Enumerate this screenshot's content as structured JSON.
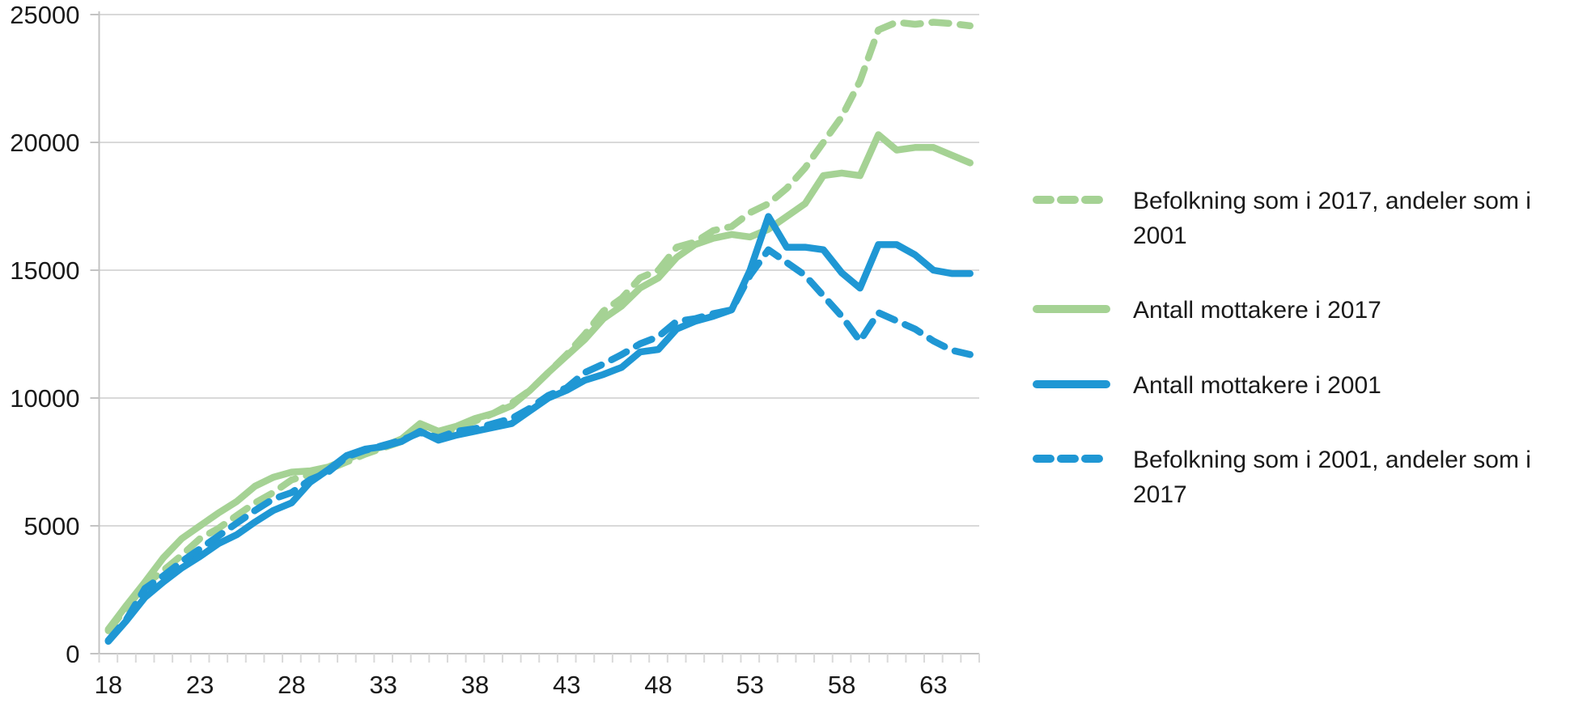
{
  "chart_data": {
    "type": "line",
    "title": "",
    "xlabel": "",
    "ylabel": "",
    "x": [
      18,
      19,
      20,
      21,
      22,
      23,
      24,
      25,
      26,
      27,
      28,
      29,
      30,
      31,
      32,
      33,
      34,
      35,
      36,
      37,
      38,
      39,
      40,
      41,
      42,
      43,
      44,
      45,
      46,
      47,
      48,
      49,
      50,
      51,
      52,
      53,
      54,
      55,
      56,
      57,
      58,
      59,
      60,
      61,
      62,
      63,
      64,
      65
    ],
    "x_tick_labels": [
      "18",
      "23",
      "28",
      "33",
      "38",
      "43",
      "48",
      "53",
      "58",
      "63"
    ],
    "x_tick_label_ages": [
      18,
      23,
      28,
      33,
      38,
      43,
      48,
      53,
      58,
      63
    ],
    "y_ticks": [
      0,
      5000,
      10000,
      15000,
      20000,
      25000
    ],
    "y_tick_labels": [
      "0",
      "5000",
      "10000",
      "15000",
      "20000",
      "25000"
    ],
    "ylim": [
      0,
      25000
    ],
    "grid": "horizontal",
    "legend_position": "right",
    "colors": {
      "green": "#a5d294",
      "blue": "#1f97d4",
      "gridline": "#d9d9d9",
      "axis": "#c3c3c3",
      "text": "#1a1a1a"
    },
    "series": [
      {
        "name": "Befolkning som i 2017, andeler som i 2001",
        "color": "#a5d294",
        "dash": true,
        "values": [
          900,
          1800,
          2700,
          3250,
          3850,
          4500,
          4900,
          5400,
          5900,
          6300,
          6800,
          7000,
          7200,
          7500,
          7800,
          8050,
          8300,
          8900,
          8600,
          8800,
          9100,
          9400,
          9800,
          10300,
          11000,
          11700,
          12500,
          13400,
          13900,
          14700,
          15000,
          15900,
          16100,
          16550,
          16710,
          17250,
          17600,
          18200,
          19000,
          20000,
          21000,
          22400,
          24400,
          24700,
          24620,
          24700,
          24650,
          24560
        ]
      },
      {
        "name": "Antall mottakere i 2017",
        "color": "#a5d294",
        "dash": false,
        "values": [
          950,
          1900,
          2800,
          3750,
          4500,
          5000,
          5500,
          5950,
          6550,
          6900,
          7100,
          7150,
          7300,
          7600,
          7900,
          8100,
          8400,
          9000,
          8700,
          8900,
          9200,
          9400,
          9700,
          10300,
          11000,
          11650,
          12300,
          13100,
          13600,
          14300,
          14700,
          15500,
          16000,
          16250,
          16400,
          16300,
          16600,
          17100,
          17600,
          18700,
          18800,
          18700,
          20300,
          19700,
          19800,
          19800,
          19500,
          19200
        ]
      },
      {
        "name": "Antall mottakere i 2001",
        "color": "#1f97d4",
        "dash": false,
        "values": [
          480,
          1300,
          2200,
          2800,
          3350,
          3800,
          4300,
          4650,
          5150,
          5600,
          5900,
          6700,
          7200,
          7750,
          8000,
          8100,
          8300,
          8700,
          8350,
          8550,
          8700,
          8850,
          9000,
          9500,
          10000,
          10300,
          10700,
          10920,
          11200,
          11800,
          11900,
          12700,
          13000,
          13200,
          13450,
          15000,
          17100,
          15900,
          15900,
          15800,
          14900,
          14300,
          16000,
          16000,
          15600,
          15000,
          14870,
          14870
        ]
      },
      {
        "name": "Befolkning som i 2001, andeler som i 2017",
        "color": "#1f97d4",
        "dash": true,
        "values": [
          520,
          1350,
          2550,
          3040,
          3600,
          4100,
          4600,
          5100,
          5600,
          6050,
          6300,
          6800,
          7100,
          7700,
          7950,
          8150,
          8350,
          8650,
          8450,
          8700,
          8800,
          9000,
          9200,
          9600,
          10100,
          10400,
          11000,
          11330,
          11700,
          12120,
          12400,
          13000,
          13100,
          13300,
          13450,
          14800,
          15800,
          15300,
          14800,
          14000,
          13200,
          12230,
          13340,
          13020,
          12700,
          12230,
          11870,
          11700
        ]
      }
    ]
  },
  "legend": {
    "items": [
      {
        "label": "Befolkning som i 2017, andeler som i 2001"
      },
      {
        "label": "Antall mottakere i 2017"
      },
      {
        "label": "Antall mottakere i 2001"
      },
      {
        "label": "Befolkning som i 2001, andeler som i 2017"
      }
    ]
  }
}
